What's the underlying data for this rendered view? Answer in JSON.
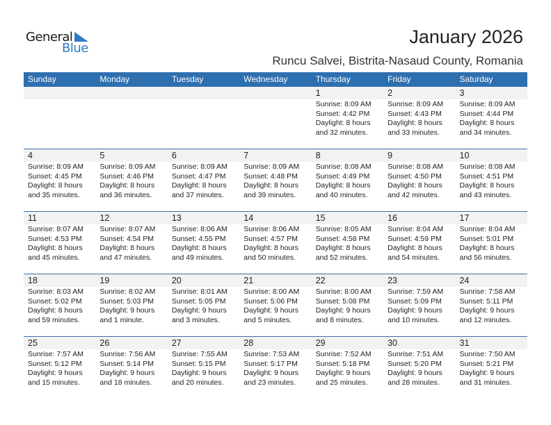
{
  "logo": {
    "text_general": "General",
    "text_blue": "Blue",
    "accent": "#2e7bc4"
  },
  "header": {
    "title": "January 2026",
    "location": "Runcu Salvei, Bistrita-Nasaud County, Romania"
  },
  "colors": {
    "header_bg": "#2e6fb0",
    "band_bg": "#f2f2f2"
  },
  "weekdays": [
    "Sunday",
    "Monday",
    "Tuesday",
    "Wednesday",
    "Thursday",
    "Friday",
    "Saturday"
  ],
  "weeks": [
    [
      null,
      null,
      null,
      null,
      {
        "day": "1",
        "sunrise": "Sunrise: 8:09 AM",
        "sunset": "Sunset: 4:42 PM",
        "daylight1": "Daylight: 8 hours",
        "daylight2": "and 32 minutes."
      },
      {
        "day": "2",
        "sunrise": "Sunrise: 8:09 AM",
        "sunset": "Sunset: 4:43 PM",
        "daylight1": "Daylight: 8 hours",
        "daylight2": "and 33 minutes."
      },
      {
        "day": "3",
        "sunrise": "Sunrise: 8:09 AM",
        "sunset": "Sunset: 4:44 PM",
        "daylight1": "Daylight: 8 hours",
        "daylight2": "and 34 minutes."
      }
    ],
    [
      {
        "day": "4",
        "sunrise": "Sunrise: 8:09 AM",
        "sunset": "Sunset: 4:45 PM",
        "daylight1": "Daylight: 8 hours",
        "daylight2": "and 35 minutes."
      },
      {
        "day": "5",
        "sunrise": "Sunrise: 8:09 AM",
        "sunset": "Sunset: 4:46 PM",
        "daylight1": "Daylight: 8 hours",
        "daylight2": "and 36 minutes."
      },
      {
        "day": "6",
        "sunrise": "Sunrise: 8:09 AM",
        "sunset": "Sunset: 4:47 PM",
        "daylight1": "Daylight: 8 hours",
        "daylight2": "and 37 minutes."
      },
      {
        "day": "7",
        "sunrise": "Sunrise: 8:09 AM",
        "sunset": "Sunset: 4:48 PM",
        "daylight1": "Daylight: 8 hours",
        "daylight2": "and 39 minutes."
      },
      {
        "day": "8",
        "sunrise": "Sunrise: 8:08 AM",
        "sunset": "Sunset: 4:49 PM",
        "daylight1": "Daylight: 8 hours",
        "daylight2": "and 40 minutes."
      },
      {
        "day": "9",
        "sunrise": "Sunrise: 8:08 AM",
        "sunset": "Sunset: 4:50 PM",
        "daylight1": "Daylight: 8 hours",
        "daylight2": "and 42 minutes."
      },
      {
        "day": "10",
        "sunrise": "Sunrise: 8:08 AM",
        "sunset": "Sunset: 4:51 PM",
        "daylight1": "Daylight: 8 hours",
        "daylight2": "and 43 minutes."
      }
    ],
    [
      {
        "day": "11",
        "sunrise": "Sunrise: 8:07 AM",
        "sunset": "Sunset: 4:53 PM",
        "daylight1": "Daylight: 8 hours",
        "daylight2": "and 45 minutes."
      },
      {
        "day": "12",
        "sunrise": "Sunrise: 8:07 AM",
        "sunset": "Sunset: 4:54 PM",
        "daylight1": "Daylight: 8 hours",
        "daylight2": "and 47 minutes."
      },
      {
        "day": "13",
        "sunrise": "Sunrise: 8:06 AM",
        "sunset": "Sunset: 4:55 PM",
        "daylight1": "Daylight: 8 hours",
        "daylight2": "and 49 minutes."
      },
      {
        "day": "14",
        "sunrise": "Sunrise: 8:06 AM",
        "sunset": "Sunset: 4:57 PM",
        "daylight1": "Daylight: 8 hours",
        "daylight2": "and 50 minutes."
      },
      {
        "day": "15",
        "sunrise": "Sunrise: 8:05 AM",
        "sunset": "Sunset: 4:58 PM",
        "daylight1": "Daylight: 8 hours",
        "daylight2": "and 52 minutes."
      },
      {
        "day": "16",
        "sunrise": "Sunrise: 8:04 AM",
        "sunset": "Sunset: 4:59 PM",
        "daylight1": "Daylight: 8 hours",
        "daylight2": "and 54 minutes."
      },
      {
        "day": "17",
        "sunrise": "Sunrise: 8:04 AM",
        "sunset": "Sunset: 5:01 PM",
        "daylight1": "Daylight: 8 hours",
        "daylight2": "and 56 minutes."
      }
    ],
    [
      {
        "day": "18",
        "sunrise": "Sunrise: 8:03 AM",
        "sunset": "Sunset: 5:02 PM",
        "daylight1": "Daylight: 8 hours",
        "daylight2": "and 59 minutes."
      },
      {
        "day": "19",
        "sunrise": "Sunrise: 8:02 AM",
        "sunset": "Sunset: 5:03 PM",
        "daylight1": "Daylight: 9 hours",
        "daylight2": "and 1 minute."
      },
      {
        "day": "20",
        "sunrise": "Sunrise: 8:01 AM",
        "sunset": "Sunset: 5:05 PM",
        "daylight1": "Daylight: 9 hours",
        "daylight2": "and 3 minutes."
      },
      {
        "day": "21",
        "sunrise": "Sunrise: 8:00 AM",
        "sunset": "Sunset: 5:06 PM",
        "daylight1": "Daylight: 9 hours",
        "daylight2": "and 5 minutes."
      },
      {
        "day": "22",
        "sunrise": "Sunrise: 8:00 AM",
        "sunset": "Sunset: 5:08 PM",
        "daylight1": "Daylight: 9 hours",
        "daylight2": "and 8 minutes."
      },
      {
        "day": "23",
        "sunrise": "Sunrise: 7:59 AM",
        "sunset": "Sunset: 5:09 PM",
        "daylight1": "Daylight: 9 hours",
        "daylight2": "and 10 minutes."
      },
      {
        "day": "24",
        "sunrise": "Sunrise: 7:58 AM",
        "sunset": "Sunset: 5:11 PM",
        "daylight1": "Daylight: 9 hours",
        "daylight2": "and 12 minutes."
      }
    ],
    [
      {
        "day": "25",
        "sunrise": "Sunrise: 7:57 AM",
        "sunset": "Sunset: 5:12 PM",
        "daylight1": "Daylight: 9 hours",
        "daylight2": "and 15 minutes."
      },
      {
        "day": "26",
        "sunrise": "Sunrise: 7:56 AM",
        "sunset": "Sunset: 5:14 PM",
        "daylight1": "Daylight: 9 hours",
        "daylight2": "and 18 minutes."
      },
      {
        "day": "27",
        "sunrise": "Sunrise: 7:55 AM",
        "sunset": "Sunset: 5:15 PM",
        "daylight1": "Daylight: 9 hours",
        "daylight2": "and 20 minutes."
      },
      {
        "day": "28",
        "sunrise": "Sunrise: 7:53 AM",
        "sunset": "Sunset: 5:17 PM",
        "daylight1": "Daylight: 9 hours",
        "daylight2": "and 23 minutes."
      },
      {
        "day": "29",
        "sunrise": "Sunrise: 7:52 AM",
        "sunset": "Sunset: 5:18 PM",
        "daylight1": "Daylight: 9 hours",
        "daylight2": "and 25 minutes."
      },
      {
        "day": "30",
        "sunrise": "Sunrise: 7:51 AM",
        "sunset": "Sunset: 5:20 PM",
        "daylight1": "Daylight: 9 hours",
        "daylight2": "and 28 minutes."
      },
      {
        "day": "31",
        "sunrise": "Sunrise: 7:50 AM",
        "sunset": "Sunset: 5:21 PM",
        "daylight1": "Daylight: 9 hours",
        "daylight2": "and 31 minutes."
      }
    ]
  ]
}
